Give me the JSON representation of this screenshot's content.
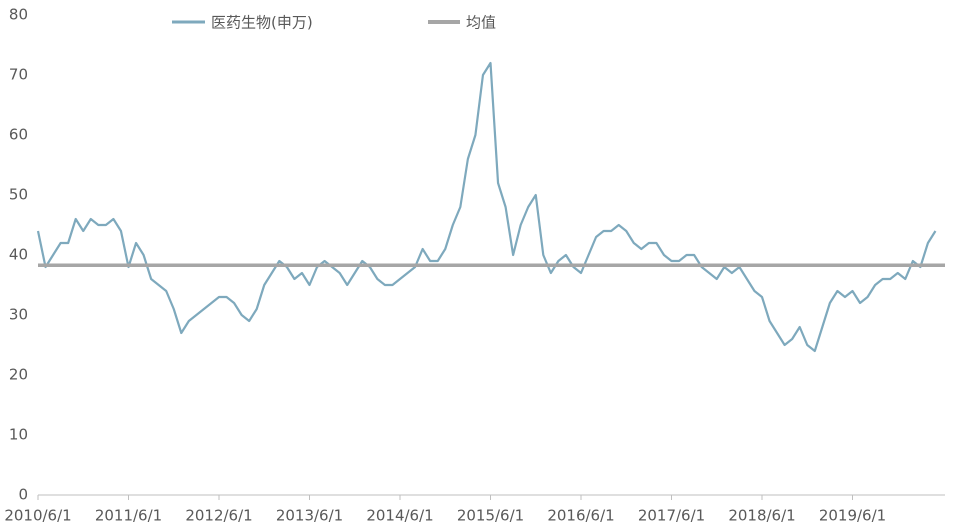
{
  "chart_data": {
    "type": "line",
    "x": [
      "2010/6/1",
      "2010/7/1",
      "2010/8/1",
      "2010/9/1",
      "2010/10/1",
      "2010/11/1",
      "2010/12/1",
      "2011/1/1",
      "2011/2/1",
      "2011/3/1",
      "2011/4/1",
      "2011/5/1",
      "2011/6/1",
      "2011/7/1",
      "2011/8/1",
      "2011/9/1",
      "2011/10/1",
      "2011/11/1",
      "2011/12/1",
      "2012/1/1",
      "2012/2/1",
      "2012/3/1",
      "2012/4/1",
      "2012/5/1",
      "2012/6/1",
      "2012/7/1",
      "2012/8/1",
      "2012/9/1",
      "2012/10/1",
      "2012/11/1",
      "2012/12/1",
      "2013/1/1",
      "2013/2/1",
      "2013/3/1",
      "2013/4/1",
      "2013/5/1",
      "2013/6/1",
      "2013/7/1",
      "2013/8/1",
      "2013/9/1",
      "2013/10/1",
      "2013/11/1",
      "2013/12/1",
      "2014/1/1",
      "2014/2/1",
      "2014/3/1",
      "2014/4/1",
      "2014/5/1",
      "2014/6/1",
      "2014/7/1",
      "2014/8/1",
      "2014/9/1",
      "2014/10/1",
      "2014/11/1",
      "2014/12/1",
      "2015/1/1",
      "2015/2/1",
      "2015/3/1",
      "2015/4/1",
      "2015/5/1",
      "2015/6/1",
      "2015/7/1",
      "2015/8/1",
      "2015/9/1",
      "2015/10/1",
      "2015/11/1",
      "2015/12/1",
      "2016/1/1",
      "2016/2/1",
      "2016/3/1",
      "2016/4/1",
      "2016/5/1",
      "2016/6/1",
      "2016/7/1",
      "2016/8/1",
      "2016/9/1",
      "2016/10/1",
      "2016/11/1",
      "2016/12/1",
      "2017/1/1",
      "2017/2/1",
      "2017/3/1",
      "2017/4/1",
      "2017/5/1",
      "2017/6/1",
      "2017/7/1",
      "2017/8/1",
      "2017/9/1",
      "2017/10/1",
      "2017/11/1",
      "2017/12/1",
      "2018/1/1",
      "2018/2/1",
      "2018/3/1",
      "2018/4/1",
      "2018/5/1",
      "2018/6/1",
      "2018/7/1",
      "2018/8/1",
      "2018/9/1",
      "2018/10/1",
      "2018/11/1",
      "2018/12/1",
      "2019/1/1",
      "2019/2/1",
      "2019/3/1",
      "2019/4/1",
      "2019/5/1",
      "2019/6/1",
      "2019/7/1",
      "2019/8/1",
      "2019/9/1",
      "2019/10/1",
      "2019/11/1",
      "2019/12/1",
      "2020/1/1",
      "2020/2/1",
      "2020/3/1",
      "2020/4/1",
      "2020/5/1"
    ],
    "series": [
      {
        "name": "医药生物(申万)",
        "color": "#7ea9bd",
        "values": [
          44,
          38,
          40,
          42,
          42,
          46,
          44,
          46,
          45,
          45,
          46,
          44,
          38,
          42,
          40,
          36,
          35,
          34,
          31,
          27,
          29,
          30,
          31,
          32,
          33,
          33,
          32,
          30,
          29,
          31,
          35,
          37,
          39,
          38,
          36,
          37,
          35,
          38,
          39,
          38,
          37,
          35,
          37,
          39,
          38,
          36,
          35,
          35,
          36,
          37,
          38,
          41,
          39,
          39,
          41,
          45,
          48,
          56,
          60,
          70,
          72,
          52,
          48,
          40,
          45,
          48,
          50,
          40,
          37,
          39,
          40,
          38,
          37,
          40,
          43,
          44,
          44,
          45,
          44,
          42,
          41,
          42,
          42,
          40,
          39,
          39,
          40,
          40,
          38,
          37,
          36,
          38,
          37,
          38,
          36,
          34,
          33,
          29,
          27,
          25,
          26,
          28,
          25,
          24,
          28,
          32,
          34,
          33,
          34,
          32,
          33,
          35,
          36,
          36,
          37,
          36,
          39,
          38,
          42,
          44
        ]
      }
    ],
    "reference_line": {
      "name": "均值",
      "value": 38.3,
      "color": "#a6a6a6"
    },
    "ylim": [
      0,
      80
    ],
    "yticks": [
      0,
      10,
      20,
      30,
      40,
      50,
      60,
      70,
      80
    ],
    "xticks": [
      "2010/6/1",
      "2011/6/1",
      "2012/6/1",
      "2013/6/1",
      "2014/6/1",
      "2015/6/1",
      "2016/6/1",
      "2017/6/1",
      "2018/6/1",
      "2019/6/1"
    ],
    "grid": false
  }
}
